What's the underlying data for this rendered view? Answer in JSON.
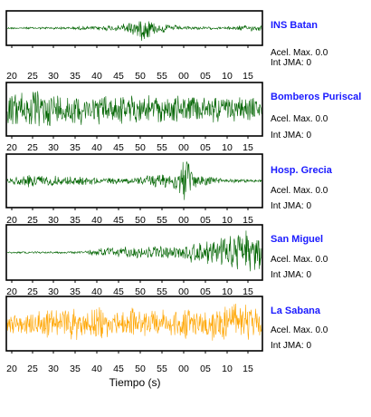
{
  "chart_data": {
    "type": "line",
    "xlabel": "Tiempo (s)",
    "x_tick_labels": [
      "20",
      "25",
      "30",
      "35",
      "40",
      "45",
      "50",
      "55",
      "00",
      "05",
      "10",
      "15"
    ],
    "grid": false,
    "panels": [
      {
        "station": "INS Batan",
        "accel_label": "Acel. Max.",
        "accel_value": "0.0",
        "int_label": "Int JMA:",
        "int_value": "0",
        "color": "#006400",
        "profile": [
          [
            0,
            0.06
          ],
          [
            0.25,
            0.1
          ],
          [
            0.42,
            0.22
          ],
          [
            0.5,
            0.55
          ],
          [
            0.54,
            0.95
          ],
          [
            0.58,
            0.45
          ],
          [
            0.68,
            0.15
          ],
          [
            0.85,
            0.08
          ],
          [
            0.9,
            0.18
          ],
          [
            1,
            0.22
          ]
        ]
      },
      {
        "station": "Bomberos Puriscal",
        "accel_label": "Acel. Max.",
        "accel_value": "0.0",
        "int_label": "Int JMA:",
        "int_value": "0",
        "color": "#006400",
        "profile": [
          [
            0,
            0.75
          ],
          [
            0.1,
            0.85
          ],
          [
            0.3,
            0.7
          ],
          [
            0.5,
            0.62
          ],
          [
            0.7,
            0.6
          ],
          [
            0.85,
            0.6
          ],
          [
            1,
            0.5
          ]
        ]
      },
      {
        "station": "Hosp. Grecia",
        "accel_label": "Acel. Max.",
        "accel_value": "0.0",
        "int_label": "Int JMA:",
        "int_value": "0",
        "color": "#006400",
        "profile": [
          [
            0,
            0.12
          ],
          [
            0.1,
            0.3
          ],
          [
            0.2,
            0.22
          ],
          [
            0.45,
            0.12
          ],
          [
            0.6,
            0.35
          ],
          [
            0.68,
            0.6
          ],
          [
            0.7,
            1.0
          ],
          [
            0.74,
            0.35
          ],
          [
            0.85,
            0.1
          ],
          [
            1,
            0.06
          ]
        ]
      },
      {
        "station": "San Miguel",
        "accel_label": "Acel. Max.",
        "accel_value": "0.0",
        "int_label": "Int JMA:",
        "int_value": "0",
        "color": "#006400",
        "profile": [
          [
            0,
            0.04
          ],
          [
            0.3,
            0.05
          ],
          [
            0.38,
            0.22
          ],
          [
            0.5,
            0.25
          ],
          [
            0.65,
            0.3
          ],
          [
            0.8,
            0.5
          ],
          [
            0.85,
            0.85
          ],
          [
            0.92,
            0.95
          ],
          [
            1,
            0.9
          ]
        ]
      },
      {
        "station": "La Sabana",
        "accel_label": "Acel. Max.",
        "accel_value": "0.0",
        "int_label": "Int JMA:",
        "int_value": "0",
        "color": "#FFA500",
        "profile": [
          [
            0,
            0.45
          ],
          [
            0.12,
            0.6
          ],
          [
            0.3,
            0.7
          ],
          [
            0.5,
            0.65
          ],
          [
            0.6,
            0.55
          ],
          [
            0.75,
            0.75
          ],
          [
            0.9,
            0.85
          ],
          [
            1,
            0.7
          ]
        ]
      }
    ]
  }
}
